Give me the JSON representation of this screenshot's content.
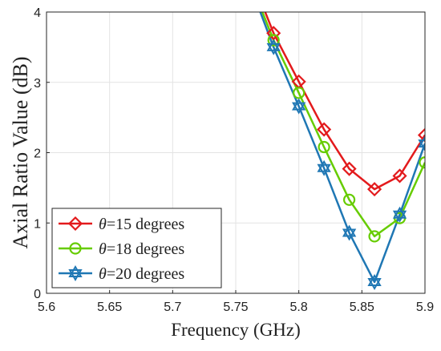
{
  "chart_data": {
    "type": "line",
    "title": "",
    "xlabel": "Frequency (GHz)",
    "ylabel": "Axial Ratio Value (dB)",
    "xlim": [
      5.6,
      5.9
    ],
    "ylim": [
      0,
      4
    ],
    "x_ticks": [
      "5.6",
      "5.65",
      "5.7",
      "5.75",
      "5.8",
      "5.85",
      "5.9"
    ],
    "y_ticks": [
      "0",
      "1",
      "2",
      "3",
      "4"
    ],
    "grid": true,
    "legend_position": "bottom-left",
    "series": [
      {
        "name": "θ=15 degrees",
        "legend_symbol": "θ",
        "legend_text": "=15 degrees",
        "color": "#e31a1c",
        "marker": "diamond",
        "x": [
          5.76,
          5.78,
          5.8,
          5.82,
          5.84,
          5.86,
          5.88,
          5.9
        ],
        "y": [
          4.6,
          3.7,
          3.01,
          2.33,
          1.77,
          1.48,
          1.67,
          2.25
        ]
      },
      {
        "name": "θ=18 degrees",
        "legend_symbol": "θ",
        "legend_text": "=18 degrees",
        "color": "#66cc00",
        "marker": "circle",
        "x": [
          5.76,
          5.78,
          5.8,
          5.82,
          5.84,
          5.86,
          5.88,
          5.9
        ],
        "y": [
          4.5,
          3.6,
          2.85,
          2.08,
          1.33,
          0.81,
          1.07,
          1.86
        ]
      },
      {
        "name": "θ=20 degrees",
        "legend_symbol": "θ",
        "legend_text": "=20 degrees",
        "color": "#1f77b4",
        "marker": "hexagram",
        "x": [
          5.76,
          5.78,
          5.8,
          5.82,
          5.84,
          5.86,
          5.88,
          5.9
        ],
        "y": [
          4.45,
          3.5,
          2.66,
          1.78,
          0.86,
          0.16,
          1.12,
          2.13
        ]
      }
    ]
  }
}
